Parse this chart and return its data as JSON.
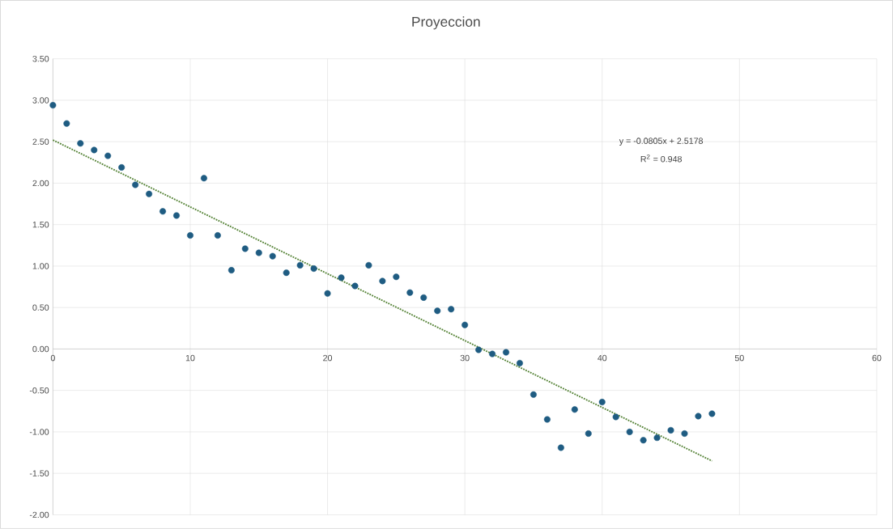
{
  "chart_data": {
    "type": "scatter",
    "title": "Proyeccion",
    "series": [
      {
        "color": "#1f5c82",
        "marker": "circle",
        "x": [
          0,
          1,
          2,
          3,
          4,
          5,
          6,
          7,
          8,
          9,
          10,
          11,
          12,
          13,
          14,
          15,
          16,
          17,
          18,
          19,
          20,
          21,
          22,
          23,
          24,
          25,
          26,
          27,
          28,
          29,
          30,
          31,
          32,
          33,
          34,
          35,
          36,
          37,
          38,
          39,
          40,
          41,
          42,
          43,
          44,
          45,
          46,
          47,
          48
        ],
        "values": [
          2.94,
          2.72,
          2.48,
          2.4,
          2.33,
          2.19,
          1.98,
          1.87,
          1.66,
          1.61,
          1.37,
          2.06,
          1.37,
          0.95,
          1.21,
          1.16,
          1.12,
          0.92,
          1.01,
          0.97,
          0.67,
          0.86,
          0.76,
          1.01,
          0.82,
          0.87,
          0.68,
          0.62,
          0.46,
          0.48,
          0.29,
          -0.01,
          -0.06,
          -0.04,
          -0.17,
          -0.55,
          -0.85,
          -1.19,
          -0.73,
          -1.02,
          -0.64,
          -0.82,
          -1.0,
          -1.1,
          -1.07,
          -0.98,
          -1.02,
          -0.81,
          -0.78
        ]
      },
      {
        "type": "line",
        "color": "#548235",
        "line_style": "dotted",
        "marker": "none",
        "x": [
          0,
          48
        ],
        "values": [
          2.52,
          -1.35
        ]
      }
    ],
    "xlim": [
      0,
      60
    ],
    "xticks": [
      0,
      10,
      20,
      30,
      40,
      50,
      60
    ],
    "ylim": [
      -2,
      3.5
    ],
    "yticks": [
      {
        "value": -2,
        "label": "-2.00"
      },
      {
        "value": -1.5,
        "label": "-1.50"
      },
      {
        "value": -1,
        "label": "-1.00"
      },
      {
        "value": -0.5,
        "label": "-0.50"
      },
      {
        "value": 0,
        "label": "0.00"
      },
      {
        "value": 0.5,
        "label": "0.50"
      },
      {
        "value": 1,
        "label": "1.00"
      },
      {
        "value": 1.5,
        "label": "1.50"
      },
      {
        "value": 2,
        "label": "2.00"
      },
      {
        "value": 2.5,
        "label": "2.50"
      },
      {
        "value": 3,
        "label": "3.00"
      },
      {
        "value": 3.5,
        "label": "3.50"
      }
    ],
    "grid": true,
    "annotations": [
      "y = -0.0805x + 2.5178",
      "R$^{2}$ = 0.948"
    ]
  }
}
